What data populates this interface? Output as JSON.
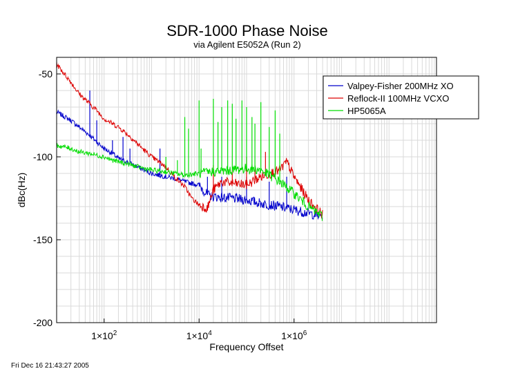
{
  "chart_data": {
    "type": "line",
    "title": "SDR-1000 Phase Noise",
    "subtitle": "via Agilent E5052A (Run 2)",
    "xlabel": "Frequency Offset",
    "ylabel": "dBc(Hz)",
    "x_scale": "log",
    "xlim": [
      10,
      1000000000
    ],
    "ylim": [
      -200,
      -40
    ],
    "grid": true,
    "legend_position": "top-right",
    "y_ticks": [
      {
        "value": -50,
        "label": "-50"
      },
      {
        "value": -100,
        "label": "-100"
      },
      {
        "value": -150,
        "label": "-150"
      },
      {
        "value": -200,
        "label": "-200"
      }
    ],
    "x_ticks": [
      {
        "value": 100,
        "mant": "1×10",
        "exp": "2"
      },
      {
        "value": 10000,
        "mant": "1×10",
        "exp": "4"
      },
      {
        "value": 1000000,
        "mant": "1×10",
        "exp": "6"
      }
    ],
    "series": [
      {
        "name": "Valpey-Fisher 200MHz XO",
        "color": "#0000cc",
        "x": [
          10,
          20,
          30,
          50,
          70,
          100,
          150,
          200,
          300,
          500,
          700,
          1000,
          2000,
          3000,
          5000,
          10000,
          15000,
          20000,
          50000,
          100000,
          200000,
          500000,
          1000000,
          2000000,
          4000000
        ],
        "y": [
          -73,
          -78,
          -82,
          -87,
          -91,
          -95,
          -98,
          -101,
          -103,
          -106,
          -108,
          -110,
          -112,
          -113,
          -115,
          -117,
          -123,
          -124,
          -125,
          -126,
          -128,
          -130,
          -132,
          -134,
          -136
        ],
        "spikes": [
          {
            "x": 50,
            "y": -60
          },
          {
            "x": 70,
            "y": -78
          },
          {
            "x": 150,
            "y": -90
          },
          {
            "x": 250,
            "y": -88
          },
          {
            "x": 350,
            "y": -95
          },
          {
            "x": 1500,
            "y": -95
          },
          {
            "x": 15000,
            "y": -112
          },
          {
            "x": 30000,
            "y": -112
          },
          {
            "x": 100000,
            "y": -112
          },
          {
            "x": 300000,
            "y": -115
          },
          {
            "x": 700000,
            "y": -112
          }
        ]
      },
      {
        "name": "Reflock-II 100MHz VCXO",
        "color": "#dd0000",
        "x": [
          10,
          20,
          30,
          50,
          70,
          100,
          150,
          200,
          300,
          500,
          700,
          1000,
          2000,
          3000,
          5000,
          7000,
          10000,
          15000,
          20000,
          30000,
          50000,
          100000,
          200000,
          500000,
          700000,
          1000000,
          2000000,
          4000000
        ],
        "y": [
          -44,
          -55,
          -62,
          -68,
          -72,
          -77,
          -80,
          -82,
          -86,
          -92,
          -96,
          -100,
          -106,
          -112,
          -118,
          -125,
          -129,
          -131,
          -120,
          -115,
          -116,
          -117,
          -112,
          -108,
          -103,
          -112,
          -126,
          -135
        ],
        "spikes": [
          {
            "x": 20000,
            "y": -105
          },
          {
            "x": 50000,
            "y": -108
          },
          {
            "x": 100000,
            "y": -100
          },
          {
            "x": 150000,
            "y": -105
          },
          {
            "x": 250000,
            "y": -97
          }
        ]
      },
      {
        "name": "HP5065A",
        "color": "#00dd00",
        "x": [
          10,
          20,
          30,
          50,
          70,
          100,
          150,
          200,
          300,
          500,
          700,
          1000,
          2000,
          3000,
          5000,
          10000,
          20000,
          50000,
          100000,
          200000,
          500000,
          1000000,
          2000000,
          4000000
        ],
        "y": [
          -93,
          -95,
          -97,
          -98,
          -99,
          -100,
          -102,
          -103,
          -104,
          -106,
          -107,
          -108,
          -109,
          -110,
          -111,
          -110,
          -109,
          -108,
          -107,
          -108,
          -115,
          -122,
          -130,
          -136
        ],
        "spikes": [
          {
            "x": 2000,
            "y": -100
          },
          {
            "x": 3500,
            "y": -102
          },
          {
            "x": 5000,
            "y": -76
          },
          {
            "x": 6000,
            "y": -83
          },
          {
            "x": 10000,
            "y": -66
          },
          {
            "x": 11000,
            "y": -95
          },
          {
            "x": 20000,
            "y": -65
          },
          {
            "x": 25000,
            "y": -79
          },
          {
            "x": 30000,
            "y": -70
          },
          {
            "x": 40000,
            "y": -66
          },
          {
            "x": 50000,
            "y": -68
          },
          {
            "x": 60000,
            "y": -77
          },
          {
            "x": 80000,
            "y": -66
          },
          {
            "x": 100000,
            "y": -70
          },
          {
            "x": 130000,
            "y": -76
          },
          {
            "x": 150000,
            "y": -80
          },
          {
            "x": 200000,
            "y": -67
          },
          {
            "x": 300000,
            "y": -82
          },
          {
            "x": 400000,
            "y": -72
          },
          {
            "x": 500000,
            "y": -86
          }
        ]
      }
    ]
  },
  "footer": {
    "timestamp": "Fri Dec 16 21:43:27 2005"
  }
}
